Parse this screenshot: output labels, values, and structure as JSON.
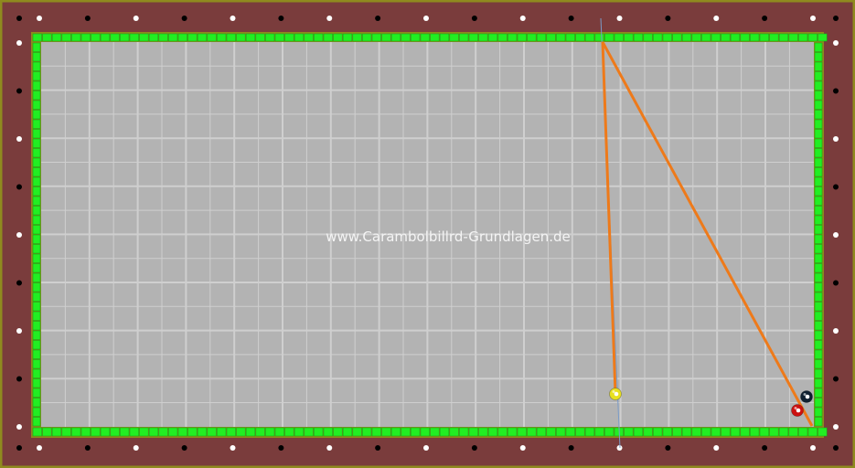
{
  "watermark": "www.Carambolbillrd-Grundlagen.de",
  "colors": {
    "frame": "#7a3c3c",
    "frame_border": "#8f8a1e",
    "cushion": "#22ee22",
    "cloth": "#b3b3b3",
    "grid": "#cfcfcf",
    "ball_path": "#ee7a1a",
    "aim_line": "#7a9cc8"
  },
  "balls": [
    {
      "name": "yellow-ball",
      "color": "#e8e020"
    },
    {
      "name": "red-ball",
      "color": "#cc1010"
    },
    {
      "name": "black-ball",
      "color": "#102030"
    }
  ]
}
